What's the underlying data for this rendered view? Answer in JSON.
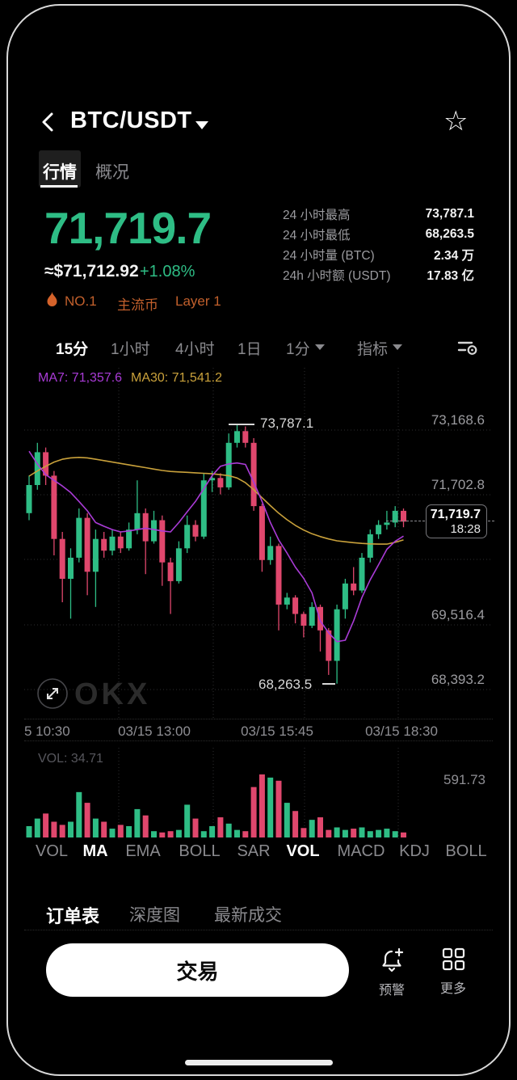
{
  "header": {
    "title": "BTC/USDT",
    "star_icon": "☆"
  },
  "tabs": {
    "quotes": "行情",
    "overview": "概况"
  },
  "price": {
    "last": "71,719.7",
    "fiat": "≈$71,712.92",
    "change": "+1.08%"
  },
  "badges": {
    "rank": "NO.1",
    "tag_main": "主流币",
    "tag_layer": "Layer 1"
  },
  "stats": {
    "rows": [
      {
        "label": "24 小时最高",
        "value": "73,787.1"
      },
      {
        "label": "24 小时最低",
        "value": "68,263.5"
      },
      {
        "label": "24 小时量 (BTC)",
        "value": "2.34 万"
      },
      {
        "label": "24h 小时额 (USDT)",
        "value": "17.83 亿"
      }
    ]
  },
  "timeframes": {
    "items": [
      "15分",
      "1小时",
      "4小时",
      "1日"
    ],
    "dropdown": "1分",
    "indicator_menu": "指标"
  },
  "chart": {
    "ma7_label": "MA7: 71,357.6",
    "ma30_label": "MA30: 71,541.2",
    "high_annotation": "73,787.1",
    "low_annotation": "68,263.5",
    "price_tag": {
      "price": "71,719.7",
      "time": "18:28"
    },
    "y_axis_labels": [
      "73,168.6",
      "71,702.8",
      "69,516.4",
      "68,393.2"
    ],
    "x_axis_labels": [
      "5 10:30",
      "03/15 13:00",
      "03/15 15:45",
      "03/15 18:30"
    ],
    "watermark": "OKX"
  },
  "volume_pane": {
    "current_label": "VOL: 34.71",
    "max_label": "591.73"
  },
  "indicator_tabs": {
    "items": [
      {
        "label": "VOL",
        "active": false
      },
      {
        "label": "MA",
        "active": true
      },
      {
        "label": "EMA",
        "active": false
      },
      {
        "label": "BOLL",
        "active": false
      },
      {
        "label": "SAR",
        "active": false
      },
      {
        "label": "VOL",
        "active": true
      },
      {
        "label": "MACD",
        "active": false
      },
      {
        "label": "KDJ",
        "active": false
      },
      {
        "label": "BOLL",
        "active": false
      }
    ]
  },
  "bottom_tabs": {
    "items": [
      {
        "label": "订单表",
        "active": true
      },
      {
        "label": "深度图",
        "active": false
      },
      {
        "label": "最新成交",
        "active": false
      }
    ]
  },
  "action_bar": {
    "trade": "交易",
    "alert": "预警",
    "more": "更多"
  },
  "colors": {
    "up": "#2EBD85",
    "down": "#E0476D",
    "ma7": "#A93BD6",
    "ma30": "#C9A13B",
    "accent_green": "#2EBD85",
    "badge_orange": "#C2602C",
    "gridline": "#2e2e31",
    "axis_text": "#8e8e93"
  },
  "chart_data": {
    "type": "candlestick",
    "pair": "BTC/USDT",
    "interval": "15分",
    "last": 71719.7,
    "high_24h": 73787.1,
    "low_24h": 68263.5,
    "y_axis_values": [
      73168.6,
      71702.8,
      69516.4,
      68393.2
    ],
    "x_labels": [
      "5 10:30",
      "03/15 13:00",
      "03/15 15:45",
      "03/15 18:30"
    ],
    "vol_current": 34.71,
    "vol_max": 591.73,
    "candles": [
      [
        71900,
        72700,
        71750,
        72500
      ],
      [
        72500,
        73400,
        72400,
        73200
      ],
      [
        73200,
        73300,
        72500,
        72700
      ],
      [
        72700,
        72800,
        71000,
        71350
      ],
      [
        71350,
        71500,
        70000,
        70500
      ],
      [
        70500,
        71150,
        69650,
        70950
      ],
      [
        70950,
        72000,
        70850,
        71800
      ],
      [
        71800,
        71900,
        70150,
        70650
      ],
      [
        70650,
        71550,
        69900,
        71350
      ],
      [
        71350,
        71500,
        70950,
        71100
      ],
      [
        71100,
        71550,
        71000,
        71400
      ],
      [
        71400,
        71500,
        71050,
        71150
      ],
      [
        71150,
        71700,
        71100,
        71550
      ],
      [
        71550,
        72600,
        71450,
        71900
      ],
      [
        71900,
        72000,
        70600,
        71300
      ],
      [
        71300,
        71950,
        71250,
        71750
      ],
      [
        71750,
        71850,
        70350,
        70850
      ],
      [
        70850,
        70950,
        69750,
        70450
      ],
      [
        70450,
        71300,
        70400,
        71150
      ],
      [
        71150,
        71850,
        71050,
        71650
      ],
      [
        71650,
        71750,
        71300,
        71400
      ],
      [
        71400,
        72750,
        71350,
        72600
      ],
      [
        72600,
        72800,
        72350,
        72650
      ],
      [
        72650,
        72750,
        72300,
        72450
      ],
      [
        72450,
        73600,
        72400,
        73400
      ],
      [
        73400,
        73787.1,
        73300,
        73650
      ],
      [
        73650,
        73750,
        73300,
        73400
      ],
      [
        73400,
        73500,
        71950,
        72050
      ],
      [
        72050,
        72100,
        70650,
        70900
      ],
      [
        70900,
        71400,
        70800,
        71200
      ],
      [
        71200,
        71250,
        69400,
        69950
      ],
      [
        69950,
        70200,
        69850,
        70100
      ],
      [
        70100,
        70150,
        69550,
        69750
      ],
      [
        69750,
        69800,
        69250,
        69500
      ],
      [
        69500,
        70000,
        69450,
        69900
      ],
      [
        69900,
        69950,
        68950,
        69400
      ],
      [
        69400,
        69450,
        68450,
        68750
      ],
      [
        68750,
        69950,
        68263.5,
        69850
      ],
      [
        69850,
        70500,
        69650,
        70400
      ],
      [
        70400,
        70750,
        70150,
        70250
      ],
      [
        70250,
        71050,
        70200,
        70950
      ],
      [
        70950,
        71550,
        70850,
        71450
      ],
      [
        71450,
        71750,
        71350,
        71650
      ],
      [
        71650,
        71950,
        71550,
        71700
      ],
      [
        71700,
        72050,
        71600,
        71950
      ],
      [
        71950,
        72000,
        71600,
        71719.7
      ]
    ],
    "ma7": [
      73220,
      72950,
      72720,
      72600,
      72480,
      72340,
      72150,
      71950,
      71700,
      71620,
      71550,
      71500,
      71520,
      71550,
      71580,
      71550,
      71520,
      71500,
      71700,
      71930,
      72150,
      72420,
      72700,
      72900,
      72950,
      72970,
      72940,
      72560,
      72150,
      71700,
      71330,
      71050,
      70750,
      70510,
      70200,
      69600,
      69350,
      69160,
      69190,
      69600,
      70100,
      70480,
      70800,
      71130,
      71300,
      71410
    ],
    "ma30": [
      72690,
      72800,
      72900,
      72990,
      73050,
      73080,
      73090,
      73080,
      73050,
      73020,
      72990,
      72960,
      72930,
      72900,
      72870,
      72840,
      72810,
      72790,
      72780,
      72770,
      72760,
      72750,
      72740,
      72720,
      72700,
      72650,
      72550,
      72400,
      72230,
      72060,
      71900,
      71760,
      71640,
      71540,
      71460,
      71400,
      71350,
      71310,
      71290,
      71270,
      71255,
      71245,
      71240,
      71240,
      71280,
      71330
    ],
    "volume_rel": [
      0.18,
      0.3,
      0.38,
      0.25,
      0.2,
      0.25,
      0.72,
      0.55,
      0.3,
      0.25,
      0.14,
      0.2,
      0.18,
      0.45,
      0.35,
      0.1,
      0.08,
      0.1,
      0.12,
      0.52,
      0.3,
      0.1,
      0.18,
      0.32,
      0.22,
      0.12,
      0.1,
      0.8,
      1.0,
      0.95,
      0.9,
      0.55,
      0.42,
      0.15,
      0.28,
      0.32,
      0.12,
      0.16,
      0.12,
      0.14,
      0.16,
      0.1,
      0.12,
      0.14,
      0.1,
      0.08
    ]
  }
}
